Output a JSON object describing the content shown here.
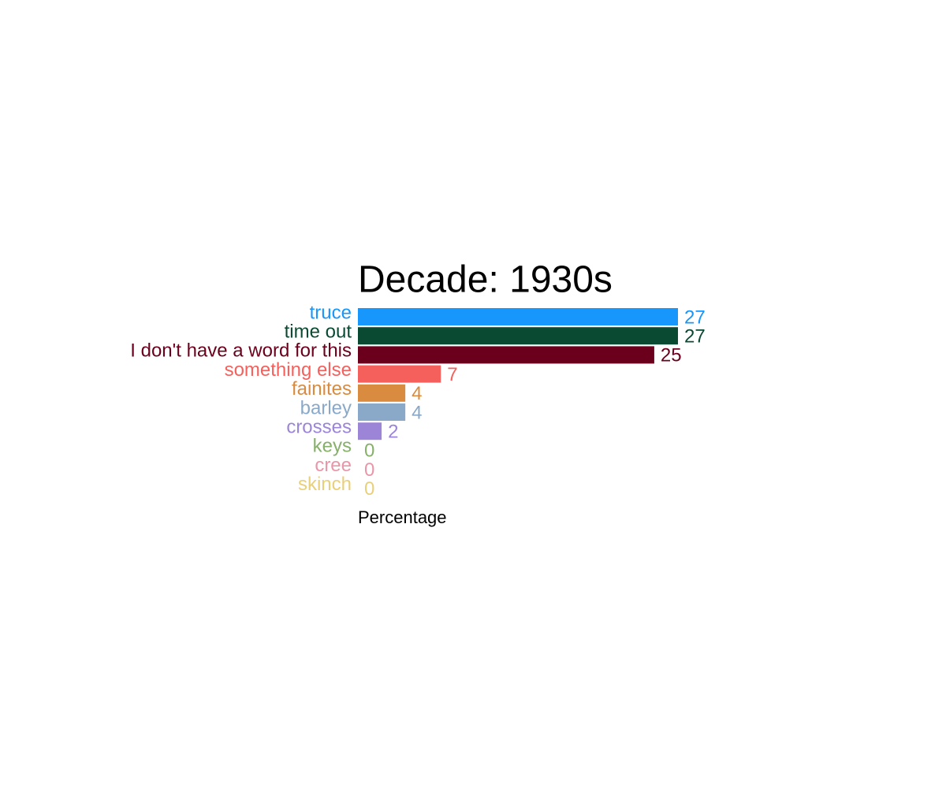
{
  "chart_data": {
    "type": "bar",
    "orientation": "horizontal",
    "title": "Decade: 1930s",
    "x_label": "Percentage",
    "categories": [
      "truce",
      "time out",
      "I don't have a word for this",
      "something else",
      "fainites",
      "barley",
      "crosses",
      "keys",
      "cree",
      "skinch"
    ],
    "values": [
      27,
      27,
      25,
      7,
      4,
      4,
      2,
      0,
      0,
      0
    ],
    "colors": [
      "#1796fb",
      "#0b4a32",
      "#6b001c",
      "#f5605c",
      "#d98b3f",
      "#8aa9c9",
      "#9c85d6",
      "#87b06a",
      "#e896a8",
      "#e8d07b"
    ],
    "xlim": [
      0,
      27
    ],
    "grid": false
  }
}
